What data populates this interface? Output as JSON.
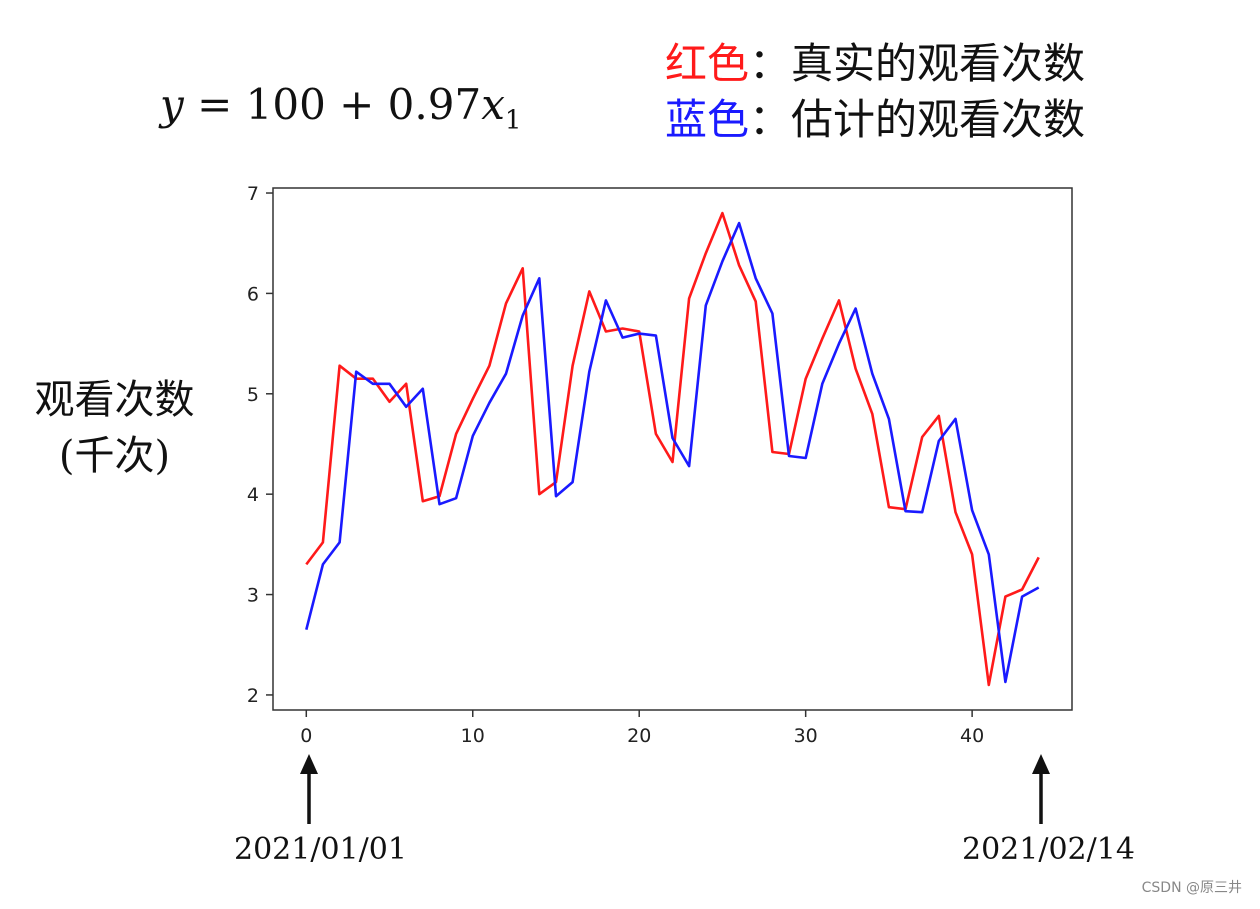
{
  "formula": {
    "y": "y",
    "eq": " = 100 + 0.97",
    "x": "x",
    "sub": "1"
  },
  "legend": {
    "red_name": "红色",
    "red_desc": "：真实的观看次数",
    "blue_name": "蓝色",
    "blue_desc": "：估计的观看次数"
  },
  "ylabel": {
    "line1": "观看次数",
    "line2": "(千次)"
  },
  "dates": {
    "start": "2021/01/01",
    "end": "2021/02/14"
  },
  "watermark": "CSDN @原三井",
  "colors": {
    "real": "#ff1a1a",
    "estimated": "#1a1aff"
  },
  "chart_data": {
    "type": "line",
    "x": [
      0,
      1,
      2,
      3,
      4,
      5,
      6,
      7,
      8,
      9,
      10,
      11,
      12,
      13,
      14,
      15,
      16,
      17,
      18,
      19,
      20,
      21,
      22,
      23,
      24,
      25,
      26,
      27,
      28,
      29,
      30,
      31,
      32,
      33,
      34,
      35,
      36,
      37,
      38,
      39,
      40,
      41,
      42,
      43,
      44
    ],
    "xlim": [
      -2,
      46
    ],
    "ylim": [
      1.85,
      7.05
    ],
    "xticks": [
      0,
      10,
      20,
      30,
      40
    ],
    "yticks": [
      2,
      3,
      4,
      5,
      6,
      7
    ],
    "series": [
      {
        "name": "真实的观看次数",
        "color": "#ff1a1a",
        "values": [
          3.3,
          3.52,
          5.28,
          5.15,
          5.15,
          4.92,
          5.1,
          3.93,
          3.98,
          4.6,
          4.95,
          5.28,
          5.9,
          6.25,
          4.0,
          4.12,
          5.28,
          6.02,
          5.62,
          5.65,
          5.62,
          4.6,
          4.32,
          5.95,
          6.4,
          6.8,
          6.28,
          5.92,
          4.42,
          4.4,
          5.15,
          5.55,
          5.93,
          5.25,
          4.8,
          3.87,
          3.85,
          4.57,
          4.78,
          3.82,
          3.4,
          2.1,
          2.98,
          3.05,
          3.37
        ]
      },
      {
        "name": "估计的观看次数",
        "color": "#1a1aff",
        "values": [
          2.65,
          3.3,
          3.52,
          5.22,
          5.1,
          5.1,
          4.87,
          5.05,
          3.9,
          3.96,
          4.58,
          4.91,
          5.2,
          5.78,
          6.15,
          3.98,
          4.12,
          5.22,
          5.93,
          5.56,
          5.6,
          5.58,
          4.56,
          4.28,
          5.88,
          6.32,
          6.7,
          6.15,
          5.8,
          4.38,
          4.36,
          5.1,
          5.5,
          5.85,
          5.2,
          4.75,
          3.83,
          3.82,
          4.53,
          4.75,
          3.84,
          3.4,
          2.13,
          2.98,
          3.07
        ]
      }
    ]
  }
}
